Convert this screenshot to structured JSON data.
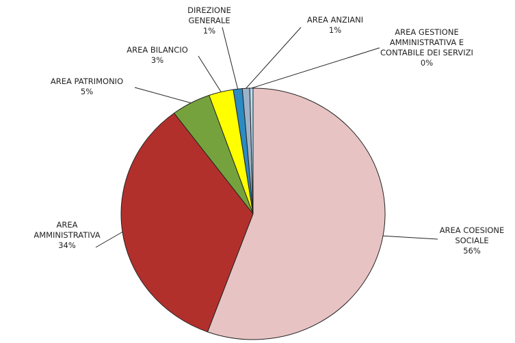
{
  "chart_data": {
    "type": "pie",
    "categories": [
      "AREA COESIONE SOCIALE",
      "AREA AMMINISTRATIVA",
      "AREA PATRIMONIO",
      "AREA BILANCIO",
      "DIREZIONE GENERALE",
      "AREA ANZIANI",
      "AREA GESTIONE AMMINISTRATIVA E CONTABILE DEI SERVIZI"
    ],
    "values": [
      55.6,
      34.2,
      4.8,
      3.0,
      1.1,
      0.9,
      0.4
    ],
    "value_labels": [
      "56%",
      "34%",
      "5%",
      "3%",
      "1%",
      "1%",
      "0%"
    ],
    "colors": [
      "#e8c3c3",
      "#b2302c",
      "#76a23e",
      "#ffff00",
      "#2b8bc3",
      "#9db2c9",
      "#b2ddf2"
    ]
  }
}
